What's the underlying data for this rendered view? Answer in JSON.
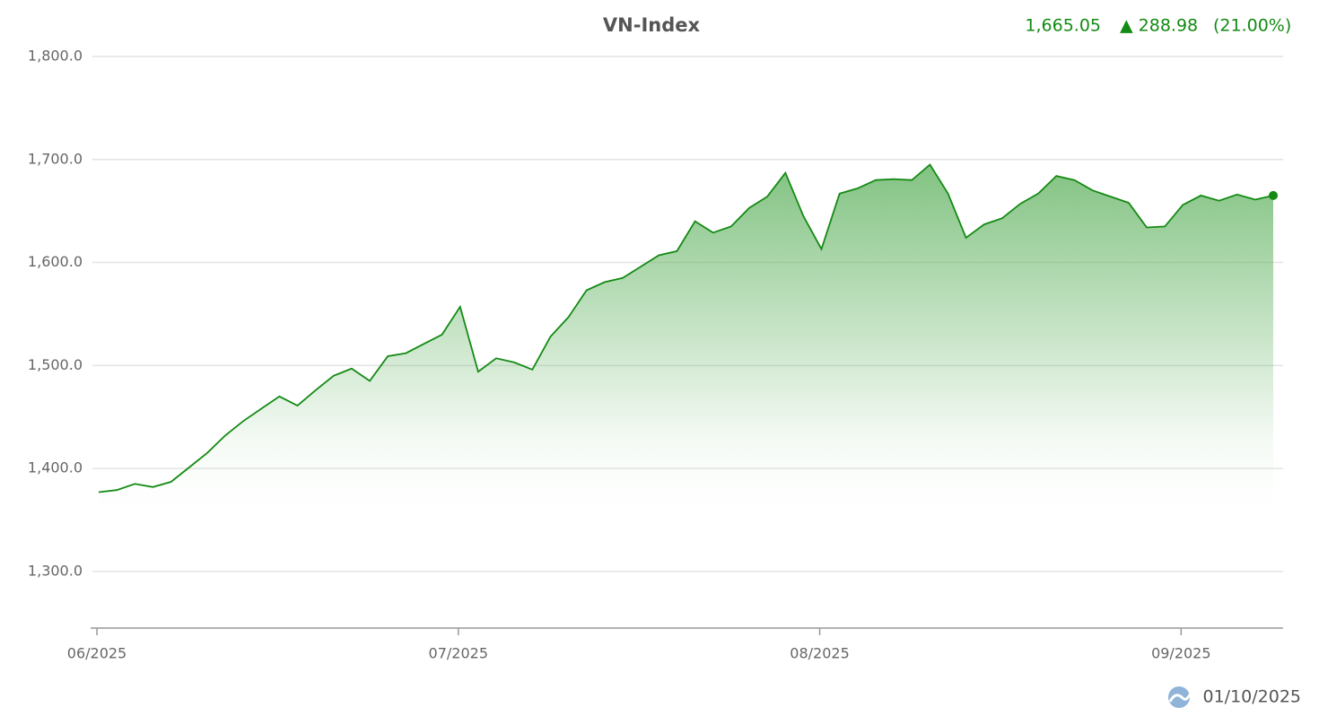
{
  "chart_data": {
    "type": "area",
    "title": "VN-Index",
    "last_value_label": "1,665.05",
    "change_label": "▲ 288.98",
    "change_percent_label": "(21.00%)",
    "date": "01/10/2025",
    "color": "#138a13",
    "header_color": "#138a13",
    "grid": true,
    "categories": [
      "06/2025",
      null,
      null,
      null,
      null,
      null,
      null,
      null,
      null,
      null,
      null,
      null,
      null,
      null,
      null,
      null,
      null,
      null,
      null,
      null,
      "07/2025",
      null,
      null,
      null,
      null,
      null,
      null,
      null,
      null,
      null,
      null,
      null,
      null,
      null,
      null,
      null,
      null,
      null,
      null,
      null,
      "08/2025",
      null,
      null,
      null,
      null,
      null,
      null,
      null,
      null,
      null,
      null,
      null,
      null,
      null,
      null,
      null,
      null,
      null,
      null,
      null,
      "09/2025",
      null,
      null,
      null,
      null,
      null
    ],
    "values": [
      1377,
      1379,
      1385,
      1382,
      1387,
      1401,
      1415,
      1432,
      1446,
      1458,
      1470,
      1461,
      1476,
      1490,
      1497,
      1485,
      1509,
      1512,
      1521,
      1530,
      1557,
      1494,
      1507,
      1503,
      1496,
      1528,
      1547,
      1573,
      1581,
      1585,
      1596,
      1607,
      1611,
      1640,
      1629,
      1635,
      1653,
      1664,
      1687,
      1645,
      1613,
      1667,
      1672,
      1680,
      1681,
      1680,
      1695,
      1667,
      1624,
      1637,
      1643,
      1657,
      1667,
      1684,
      1680,
      1670,
      1664,
      1658,
      1634,
      1635,
      1656,
      1665,
      1660,
      1666,
      1661,
      1665.05
    ],
    "ylim": [
      1245,
      1800
    ],
    "yticks": [
      {
        "value": 1300,
        "label": "1,300.0"
      },
      {
        "value": 1400,
        "label": "1,400.0"
      },
      {
        "value": 1500,
        "label": "1,500.0"
      },
      {
        "value": 1600,
        "label": "1,600.0"
      },
      {
        "value": 1700,
        "label": "1,700.0"
      },
      {
        "value": 1800,
        "label": "1,800.0"
      }
    ]
  }
}
